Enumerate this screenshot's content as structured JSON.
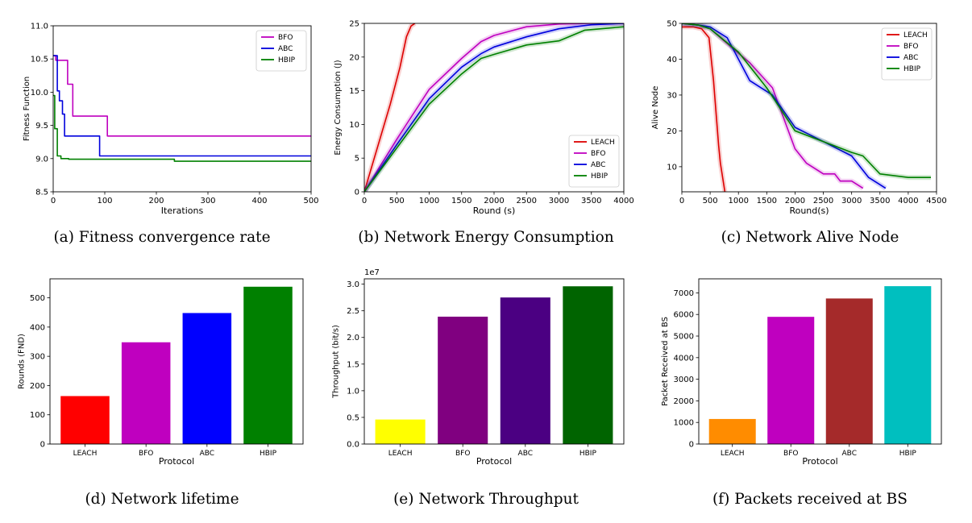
{
  "chart_data": [
    {
      "type": "line",
      "caption": "(a) Fitness convergence rate",
      "xlabel": "Iterations",
      "ylabel": "Fitness Function",
      "xlim": [
        0,
        500
      ],
      "ylim": [
        8.5,
        11.0
      ],
      "xticks": [
        0,
        100,
        200,
        300,
        400,
        500
      ],
      "yticks": [
        8.5,
        9.0,
        9.5,
        10.0,
        10.5,
        11.0
      ],
      "ytick_decimals": 1,
      "grid": false,
      "legend_position": "top-right",
      "step": true,
      "series": [
        {
          "name": "BFO",
          "color": "#bf00bf",
          "x": [
            0,
            5,
            20,
            28,
            38,
            105,
            500
          ],
          "y": [
            10.55,
            10.48,
            10.48,
            10.12,
            9.64,
            9.34,
            9.34
          ]
        },
        {
          "name": "ABC",
          "color": "#0000dd",
          "x": [
            0,
            8,
            12,
            18,
            22,
            90,
            500
          ],
          "y": [
            10.55,
            10.02,
            9.87,
            9.67,
            9.34,
            9.04,
            9.04
          ]
        },
        {
          "name": "HBIP",
          "color": "#008000",
          "x": [
            0,
            3,
            8,
            15,
            30,
            235,
            500
          ],
          "y": [
            9.95,
            9.45,
            9.04,
            9.0,
            8.99,
            8.96,
            8.96
          ]
        }
      ]
    },
    {
      "type": "line",
      "caption": "(b) Network Energy Consumption",
      "xlabel": "Round (s)",
      "ylabel": "Energy Consumption (J)",
      "xlim": [
        0,
        4000
      ],
      "ylim": [
        0,
        25
      ],
      "xticks": [
        0,
        500,
        1000,
        1500,
        2000,
        2500,
        3000,
        3500,
        4000
      ],
      "yticks": [
        0,
        5,
        10,
        15,
        20,
        25
      ],
      "ytick_decimals": 0,
      "grid": false,
      "legend_position": "bottom-right",
      "band": true,
      "series": [
        {
          "name": "LEACH",
          "color": "#dd0000",
          "x": [
            0,
            200,
            400,
            550,
            650,
            720,
            780
          ],
          "y": [
            0,
            6.5,
            13,
            18.5,
            23,
            24.6,
            25
          ]
        },
        {
          "name": "BFO",
          "color": "#bf00bf",
          "x": [
            0,
            500,
            1000,
            1500,
            1800,
            2000,
            2500,
            3000,
            3500,
            4000
          ],
          "y": [
            0,
            7.8,
            15.2,
            19.8,
            22.3,
            23.2,
            24.5,
            24.9,
            25,
            25
          ]
        },
        {
          "name": "ABC",
          "color": "#0000dd",
          "x": [
            0,
            500,
            1000,
            1500,
            1800,
            2000,
            2500,
            3000,
            3500,
            4000
          ],
          "y": [
            0,
            7.0,
            13.8,
            18.5,
            20.5,
            21.5,
            23.0,
            24.2,
            24.8,
            25
          ]
        },
        {
          "name": "HBIP",
          "color": "#008000",
          "x": [
            0,
            500,
            1000,
            1500,
            1800,
            2000,
            2500,
            3000,
            3400,
            4000
          ],
          "y": [
            0,
            6.5,
            13.0,
            17.5,
            19.8,
            20.4,
            21.8,
            22.4,
            24.0,
            24.5
          ]
        }
      ]
    },
    {
      "type": "line",
      "caption": "(c) Network Alive Node",
      "xlabel": "Round(s)",
      "ylabel": "Alive Node",
      "xlim": [
        0,
        4500
      ],
      "ylim": [
        3,
        50
      ],
      "xticks": [
        0,
        500,
        1000,
        1500,
        2000,
        2500,
        3000,
        3500,
        4000,
        4500
      ],
      "yticks": [
        10,
        20,
        30,
        40,
        50
      ],
      "ytick_decimals": 0,
      "grid": false,
      "legend_position": "top-right",
      "band": true,
      "series": [
        {
          "name": "LEACH",
          "color": "#dd0000",
          "x": [
            0,
            200,
            350,
            480,
            520,
            560,
            590,
            620,
            650,
            680,
            710,
            740,
            760
          ],
          "y": [
            49,
            49,
            48.5,
            46,
            40,
            34,
            28,
            22,
            16,
            11,
            8,
            5,
            3
          ]
        },
        {
          "name": "BFO",
          "color": "#bf00bf",
          "x": [
            0,
            300,
            500,
            900,
            1200,
            1600,
            2000,
            2200,
            2500,
            2700,
            2800,
            3000,
            3200
          ],
          "y": [
            50,
            49.5,
            48.5,
            43,
            39,
            32,
            15,
            11,
            8,
            8,
            6,
            6,
            4
          ]
        },
        {
          "name": "ABC",
          "color": "#0000dd",
          "x": [
            0,
            300,
            500,
            800,
            1200,
            1600,
            2000,
            2500,
            3000,
            3300,
            3600
          ],
          "y": [
            50,
            49.5,
            49,
            46,
            34,
            30,
            21,
            17,
            13,
            7,
            4
          ]
        },
        {
          "name": "HBIP",
          "color": "#008000",
          "x": [
            0,
            300,
            500,
            1000,
            1500,
            2000,
            2500,
            3000,
            3200,
            3500,
            4000,
            4400
          ],
          "y": [
            50,
            49.5,
            48.5,
            42,
            32,
            20,
            17,
            14,
            13,
            8,
            7,
            7
          ]
        }
      ]
    },
    {
      "type": "bar",
      "caption": "(d) Network lifetime",
      "xlabel": "Protocol",
      "ylabel": "Rounds (FND)",
      "categories": [
        "LEACH",
        "BFO",
        "ABC",
        "HBIP"
      ],
      "values": [
        164,
        348,
        448,
        538
      ],
      "colors": [
        "#ff0000",
        "#bf00bf",
        "#0000ff",
        "#008000"
      ],
      "ylim": [
        0,
        565
      ],
      "yticks": [
        0,
        100,
        200,
        300,
        400,
        500
      ],
      "ytick_decimals": 0,
      "grid": false
    },
    {
      "type": "bar",
      "caption": "(e) Network Throughput",
      "xlabel": "Protocol",
      "ylabel": "Throughput (bit/s)",
      "scale_label": "1e7",
      "categories": [
        "LEACH",
        "BFO",
        "ABC",
        "HBIP"
      ],
      "values": [
        0.46,
        2.39,
        2.75,
        2.96
      ],
      "colors": [
        "#ffff00",
        "#800080",
        "#4b0082",
        "#006400"
      ],
      "ylim": [
        0,
        3.1
      ],
      "yticks": [
        0.0,
        0.5,
        1.0,
        1.5,
        2.0,
        2.5,
        3.0
      ],
      "ytick_decimals": 1,
      "grid": false
    },
    {
      "type": "bar",
      "caption": "(f) Packets received at BS",
      "xlabel": "Protocol",
      "ylabel": "Packet Received at BS",
      "categories": [
        "LEACH",
        "BFO",
        "ABC",
        "HBIP"
      ],
      "values": [
        1160,
        5890,
        6740,
        7310
      ],
      "colors": [
        "#ff8c00",
        "#bf00bf",
        "#a52a2a",
        "#00bfbf"
      ],
      "ylim": [
        0,
        7650
      ],
      "yticks": [
        0,
        1000,
        2000,
        3000,
        4000,
        5000,
        6000,
        7000
      ],
      "ytick_decimals": 0,
      "grid": false
    }
  ]
}
